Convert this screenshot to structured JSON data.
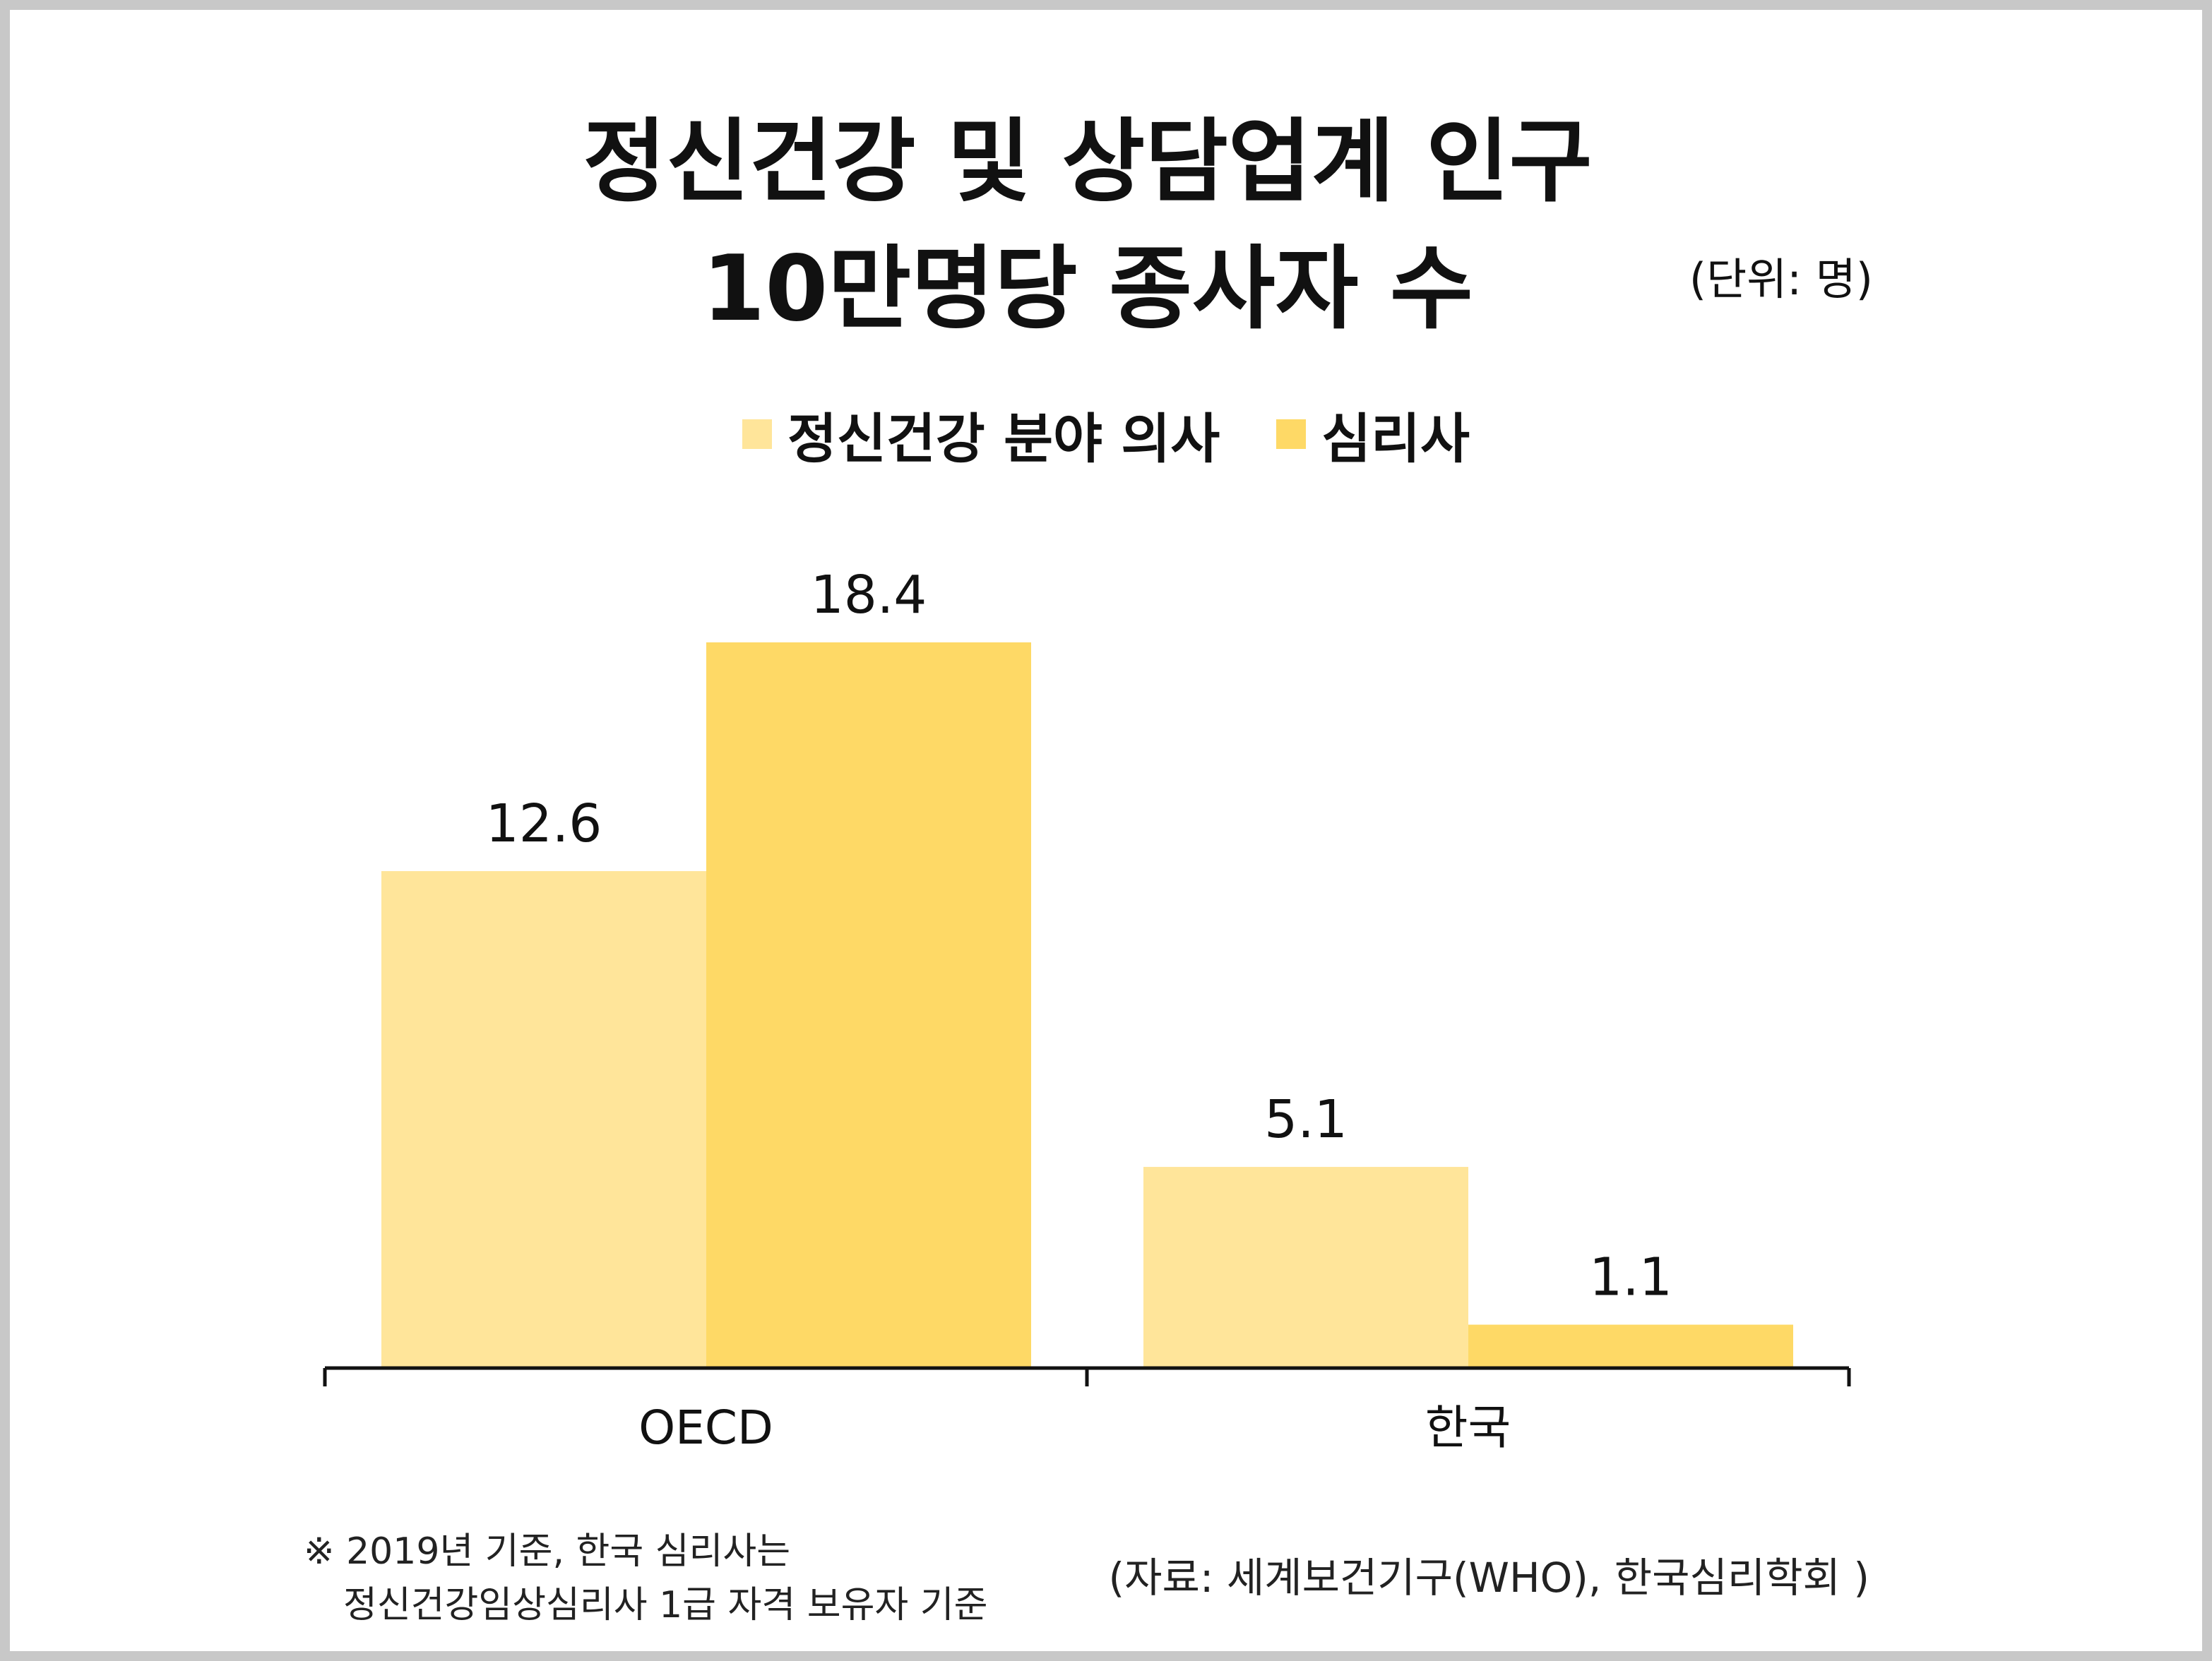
{
  "title_line1": "정신건강 및 상담업계 인구",
  "title_line2": "10만명당 종사자 수",
  "unit": "(단위: 명)",
  "note_line1": "※ 2019년 기준, 한국 심리사는",
  "note_line2": "정신건강임상심리사 1급 자격 보유자 기준",
  "source": "(자료: 세계보건기구(WHO), 한국심리학회 )",
  "chart_data": {
    "type": "bar",
    "categories": [
      "OECD",
      "한국"
    ],
    "series": [
      {
        "name": "정신건강 분야 의사",
        "values": [
          12.6,
          5.1
        ],
        "color": "#FFE59A"
      },
      {
        "name": "심리사",
        "values": [
          18.4,
          1.1
        ],
        "color": "#FED966"
      }
    ],
    "value_labels": [
      [
        "12.6",
        "5.1"
      ],
      [
        "18.4",
        "1.1"
      ]
    ],
    "ylim": [
      0,
      18.4
    ],
    "grid": false,
    "legend_position": "top-center"
  }
}
